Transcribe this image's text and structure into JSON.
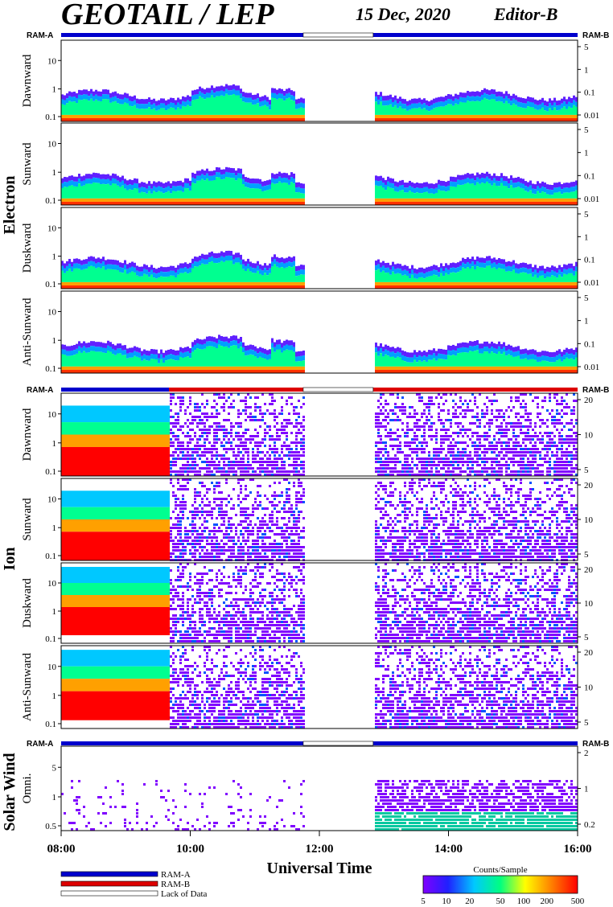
{
  "header": {
    "title": "GEOTAIL / LEP",
    "date": "15 Dec, 2020",
    "editor": "Editor-B"
  },
  "ram_labels": {
    "a": "RAM-A",
    "b": "RAM-B"
  },
  "groups": [
    {
      "name": "Electron",
      "panels": [
        "Dawnward",
        "Sunward",
        "Duskward",
        "Anti-Sunward"
      ]
    },
    {
      "name": "Ion",
      "panels": [
        "Dawnward",
        "Sunward",
        "Duskward",
        "Anti-Sunward"
      ]
    },
    {
      "name": "Solar Wind",
      "panels": [
        "Omni."
      ]
    }
  ],
  "x_axis": {
    "title": "Universal Time",
    "ticks": [
      "08:00",
      "10:00",
      "12:00",
      "14:00",
      "16:00"
    ],
    "range": [
      "08:00",
      "16:00"
    ]
  },
  "colors": {
    "ram_a": "#0000cc",
    "ram_b": "#dd0000",
    "lack_of_data": "#ffffff"
  },
  "legend": {
    "ram_a": "RAM-A",
    "ram_b": "RAM-B",
    "lack_of_data": "Lack of Data"
  },
  "colorbar": {
    "title": "Counts/Sample",
    "ticks": [
      "5",
      "10",
      "20",
      "50",
      "100",
      "200",
      "500"
    ],
    "scale": "log"
  },
  "chart_data": [
    {
      "type": "heatmap",
      "group": "Electron",
      "panel": "Dawnward",
      "ylabel": "Dawnward",
      "y_left_ticks": [
        "10",
        "1",
        "0.1"
      ],
      "y_right_ticks": [
        "5",
        "1",
        "0.1",
        "0.01"
      ],
      "data_gap": [
        "11:45",
        "12:50"
      ],
      "yscale": "log"
    },
    {
      "type": "heatmap",
      "group": "Electron",
      "panel": "Sunward",
      "ylabel": "Sunward",
      "y_left_ticks": [
        "10",
        "1",
        "0.1"
      ],
      "y_right_ticks": [
        "5",
        "1",
        "0.1",
        "0.01"
      ],
      "data_gap": [
        "11:45",
        "12:50"
      ],
      "yscale": "log"
    },
    {
      "type": "heatmap",
      "group": "Electron",
      "panel": "Duskward",
      "ylabel": "Duskward",
      "y_left_ticks": [
        "10",
        "1",
        "0.1"
      ],
      "y_right_ticks": [
        "5",
        "1",
        "0.1",
        "0.01"
      ],
      "data_gap": [
        "11:45",
        "12:50"
      ],
      "yscale": "log"
    },
    {
      "type": "heatmap",
      "group": "Electron",
      "panel": "Anti-Sunward",
      "ylabel": "Anti-Sunward",
      "y_left_ticks": [
        "10",
        "1",
        "0.1"
      ],
      "y_right_ticks": [
        "5",
        "1",
        "0.1",
        "0.01"
      ],
      "data_gap": [
        "11:45",
        "12:50"
      ],
      "yscale": "log"
    },
    {
      "type": "heatmap",
      "group": "Ion",
      "panel": "Dawnward",
      "ylabel": "Dawnward",
      "y_left_ticks": [
        "10",
        "1",
        "0.1"
      ],
      "y_right_ticks": [
        "20",
        "10",
        "5"
      ],
      "data_gap": [
        "11:45",
        "12:50"
      ],
      "yscale": "log"
    },
    {
      "type": "heatmap",
      "group": "Ion",
      "panel": "Sunward",
      "ylabel": "Sunward",
      "y_left_ticks": [
        "10",
        "1",
        "0.1"
      ],
      "y_right_ticks": [
        "20",
        "10",
        "5"
      ],
      "data_gap": [
        "11:45",
        "12:50"
      ],
      "yscale": "log"
    },
    {
      "type": "heatmap",
      "group": "Ion",
      "panel": "Duskward",
      "ylabel": "Duskward",
      "y_left_ticks": [
        "10",
        "1",
        "0.1"
      ],
      "y_right_ticks": [
        "20",
        "10",
        "5"
      ],
      "data_gap": [
        "11:45",
        "12:50"
      ],
      "yscale": "log"
    },
    {
      "type": "heatmap",
      "group": "Ion",
      "panel": "Anti-Sunward",
      "ylabel": "Anti-Sunward",
      "y_left_ticks": [
        "10",
        "1",
        "0.1"
      ],
      "y_right_ticks": [
        "20",
        "10",
        "5"
      ],
      "data_gap": [
        "11:45",
        "12:50"
      ],
      "yscale": "log"
    },
    {
      "type": "heatmap",
      "group": "Solar Wind",
      "panel": "Omni.",
      "ylabel": "Omni.",
      "y_left_ticks": [
        "5",
        "1",
        "0.5"
      ],
      "y_right_ticks": [
        "2",
        "1",
        "0.2"
      ],
      "data_gap": [
        "11:45",
        "12:50"
      ],
      "yscale": "log"
    }
  ]
}
